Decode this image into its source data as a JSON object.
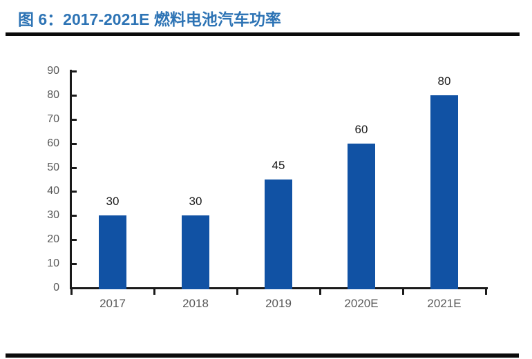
{
  "header": {
    "title": "图 6：2017-2021E 燃料电池汽车功率"
  },
  "colors": {
    "title_blue": "#2E74B5",
    "bar_blue": "#1152A4",
    "rule_black": "#0B0B0B",
    "axis_black": "#1A1A1A",
    "axis_label_gray": "#595959",
    "data_label_dark": "#1A1A1A"
  },
  "chart_data": {
    "type": "bar",
    "title": "图 6：2017-2021E 燃料电池汽车功率",
    "categories": [
      "2017",
      "2018",
      "2019",
      "2020E",
      "2021E"
    ],
    "values": [
      30,
      30,
      45,
      60,
      80
    ],
    "data_labels": [
      "30",
      "30",
      "45",
      "60",
      "80"
    ],
    "xlabel": "",
    "ylabel": "",
    "ylim": [
      0,
      90
    ],
    "yticks": [
      0,
      10,
      20,
      30,
      40,
      50,
      60,
      70,
      80,
      90
    ],
    "grid": false,
    "legend": "none"
  }
}
